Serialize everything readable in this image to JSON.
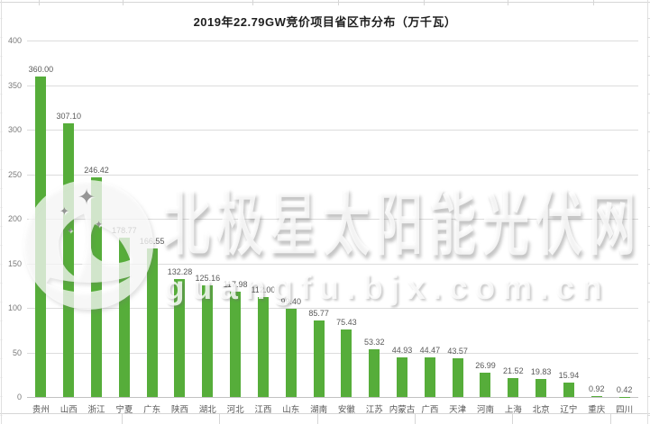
{
  "title": "2019年22.79GW竞价项目省区市分布（万千瓦）",
  "watermark": {
    "brand": "北极星太阳能光伏网",
    "domain": "guangfu.bjx.com.cn"
  },
  "colors": {
    "bar": "#56ad3a",
    "gridline": "#dcdcdc",
    "axis_text": "#7a7a7a",
    "label_text": "#595959",
    "title_text": "#1f1f1f"
  },
  "chart_data": {
    "type": "bar",
    "title": "2019年22.79GW竞价项目省区市分布（万千瓦）",
    "unit": "万千瓦",
    "categories": [
      "贵州",
      "山西",
      "浙江",
      "宁夏",
      "广东",
      "陕西",
      "湖北",
      "河北",
      "江西",
      "山东",
      "湖南",
      "安徽",
      "江苏",
      "内蒙古",
      "广西",
      "天津",
      "河南",
      "上海",
      "北京",
      "辽宁",
      "重庆",
      "四川"
    ],
    "values": [
      360.0,
      307.1,
      246.42,
      178.77,
      166.55,
      132.28,
      125.16,
      117.98,
      112.0,
      99.4,
      85.77,
      75.43,
      53.32,
      44.93,
      44.47,
      43.57,
      26.99,
      21.52,
      19.83,
      15.94,
      0.92,
      0.42
    ],
    "value_labels": [
      "360.00",
      "307.10",
      "246.42",
      "178.77",
      "166.55",
      "132.28",
      "125.16",
      "117.98",
      "112.00",
      "99.40",
      "85.77",
      "75.43",
      "53.32",
      "44.93",
      "44.47",
      "43.57",
      "26.99",
      "21.52",
      "19.83",
      "15.94",
      "0.92",
      "0.42"
    ],
    "ylim": [
      0,
      400
    ],
    "yticks": [
      400,
      350,
      300,
      250,
      200,
      150,
      100,
      50,
      0
    ],
    "grid": true,
    "legend_position": "none",
    "bar_color": "#56ad3a"
  }
}
